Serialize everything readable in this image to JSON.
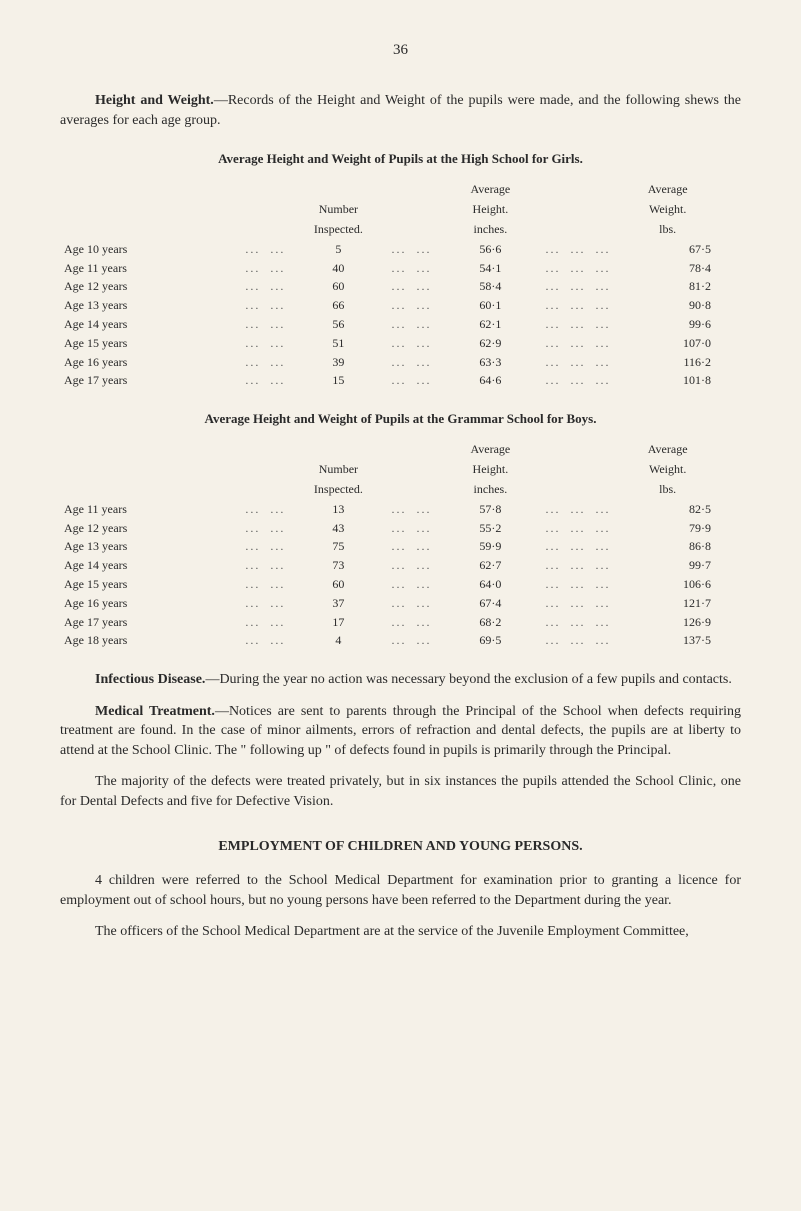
{
  "page_number": "36",
  "para_hw_title": "Height and Weight.",
  "para_hw_body": "—Records of the Height and Weight of the pupils were made, and the following shews the averages for each age group.",
  "girls_caption": "Average Height and Weight of Pupils at the High School for Girls.",
  "boys_caption": "Average Height and Weight of Pupils at the Grammar School for Boys.",
  "headers": {
    "number_top": "Number",
    "number_bot": "Inspected.",
    "height_top": "Average",
    "height_mid": "Height.",
    "height_bot": "inches.",
    "weight_top": "Average",
    "weight_mid": "Weight.",
    "weight_bot": "lbs."
  },
  "girls_rows": [
    {
      "age": "Age 10 years",
      "num": "5",
      "height": "56·6",
      "weight": "67·5"
    },
    {
      "age": "Age 11 years",
      "num": "40",
      "height": "54·1",
      "weight": "78·4"
    },
    {
      "age": "Age 12 years",
      "num": "60",
      "height": "58·4",
      "weight": "81·2"
    },
    {
      "age": "Age 13 years",
      "num": "66",
      "height": "60·1",
      "weight": "90·8"
    },
    {
      "age": "Age 14 years",
      "num": "56",
      "height": "62·1",
      "weight": "99·6"
    },
    {
      "age": "Age 15 years",
      "num": "51",
      "height": "62·9",
      "weight": "107·0"
    },
    {
      "age": "Age 16 years",
      "num": "39",
      "height": "63·3",
      "weight": "116·2"
    },
    {
      "age": "Age 17 years",
      "num": "15",
      "height": "64·6",
      "weight": "101·8"
    }
  ],
  "boys_rows": [
    {
      "age": "Age 11 years",
      "num": "13",
      "height": "57·8",
      "weight": "82·5"
    },
    {
      "age": "Age 12 years",
      "num": "43",
      "height": "55·2",
      "weight": "79·9"
    },
    {
      "age": "Age 13 years",
      "num": "75",
      "height": "59·9",
      "weight": "86·8"
    },
    {
      "age": "Age 14 years",
      "num": "73",
      "height": "62·7",
      "weight": "99·7"
    },
    {
      "age": "Age 15 years",
      "num": "60",
      "height": "64·0",
      "weight": "106·6"
    },
    {
      "age": "Age 16 years",
      "num": "37",
      "height": "67·4",
      "weight": "121·7"
    },
    {
      "age": "Age 17 years",
      "num": "17",
      "height": "68·2",
      "weight": "126·9"
    },
    {
      "age": "Age 18 years",
      "num": "4",
      "height": "69·5",
      "weight": "137·5"
    }
  ],
  "para_infectious_title": "Infectious Disease.",
  "para_infectious_body": "—During the year no action was necessary beyond the exclusion of a few pupils and contacts.",
  "para_medical_title": "Medical Treatment.",
  "para_medical_body": "—Notices are sent to parents through the Principal of the School when defects requiring treatment are found. In the case of minor ailments, errors of refraction and dental defects, the pupils are at liberty to attend at the School Clinic. The \" following up \" of defects found in pupils is primarily through the Principal.",
  "para_majority": "The majority of the defects were treated privately, but in six instances the pupils attended the School Clinic, one for Dental Defects and five for Defective Vision.",
  "employment_heading": "EMPLOYMENT OF CHILDREN AND YOUNG PERSONS.",
  "para_emp1": "4 children were referred to the School Medical Department for examination prior to granting a licence for employment out of school hours, but no young persons have been referred to the Department during the year.",
  "para_emp2": "The officers of the School Medical Department are at the service of the Juvenile Employment Committee,",
  "dots": "..."
}
